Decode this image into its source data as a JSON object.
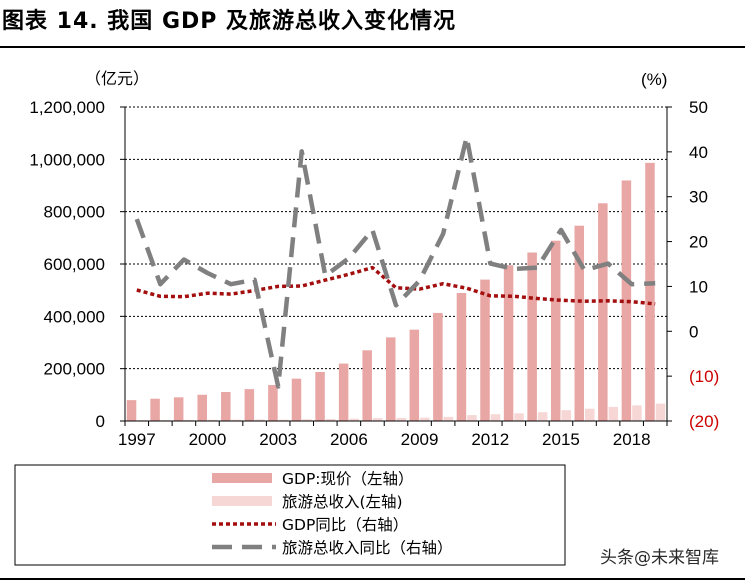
{
  "title": "图表 14. 我国 GDP 及旅游总收入变化情况",
  "watermark": "头条@未来智库",
  "chart_data": {
    "type": "bar+line",
    "left_axis": {
      "unit_label": "（亿元）",
      "min": 0,
      "max": 1200000,
      "step": 200000,
      "tick_labels": [
        "0",
        "200,000",
        "400,000",
        "600,000",
        "800,000",
        "1,000,000",
        "1,200,000"
      ]
    },
    "right_axis": {
      "unit_label": "(%)",
      "min": -20,
      "max": 50,
      "step": 10,
      "tick_labels": [
        "(20)",
        "(10)",
        "0",
        "10",
        "20",
        "30",
        "40",
        "50"
      ]
    },
    "years": [
      1997,
      1998,
      1999,
      2000,
      2001,
      2002,
      2003,
      2004,
      2005,
      2006,
      2007,
      2008,
      2009,
      2010,
      2011,
      2012,
      2013,
      2014,
      2015,
      2016,
      2017,
      2018,
      2019
    ],
    "x_tick_labels": [
      "1997",
      "2000",
      "2003",
      "2006",
      "2009",
      "2012",
      "2015",
      "2018"
    ],
    "series": [
      {
        "name": "GDP:现价（左轴）",
        "type": "bar",
        "axis": "left",
        "color": "#e8a6a4",
        "values": [
          79715,
          85196,
          90564,
          100280,
          110863,
          121717,
          137422,
          161840,
          187319,
          219439,
          270232,
          319516,
          349081,
          413030,
          489301,
          540367,
          595244,
          643974,
          689052,
          746395,
          832036,
          919281,
          986515
        ]
      },
      {
        "name": "旅游总收入(左轴)",
        "type": "bar",
        "axis": "left",
        "color": "#f6d7d6",
        "values": [
          3112,
          3439,
          4002,
          4519,
          4995,
          5566,
          4882,
          6840,
          7686,
          8935,
          10957,
          11586,
          12900,
          15700,
          22500,
          25900,
          29500,
          33700,
          41300,
          46900,
          54000,
          59700,
          66300
        ]
      },
      {
        "name": "GDP同比（右轴）",
        "type": "line",
        "axis": "right",
        "color": "#a30f0f",
        "dash": "dotted",
        "values": [
          9.2,
          7.8,
          7.7,
          8.5,
          8.3,
          9.1,
          10.0,
          10.1,
          11.4,
          12.7,
          14.2,
          9.7,
          9.4,
          10.6,
          9.6,
          7.9,
          7.8,
          7.3,
          6.9,
          6.7,
          6.8,
          6.6,
          6.1
        ]
      },
      {
        "name": "旅游总收入同比（右轴）",
        "type": "line",
        "axis": "right",
        "color": "#808080",
        "dash": "dashed",
        "values": [
          25.0,
          10.5,
          16.0,
          13.0,
          10.5,
          11.5,
          -12.3,
          40.1,
          12.4,
          16.3,
          22.6,
          5.8,
          11.3,
          21.7,
          43.3,
          15.1,
          13.9,
          14.2,
          22.6,
          13.6,
          15.1,
          10.5,
          10.7
        ]
      }
    ]
  }
}
